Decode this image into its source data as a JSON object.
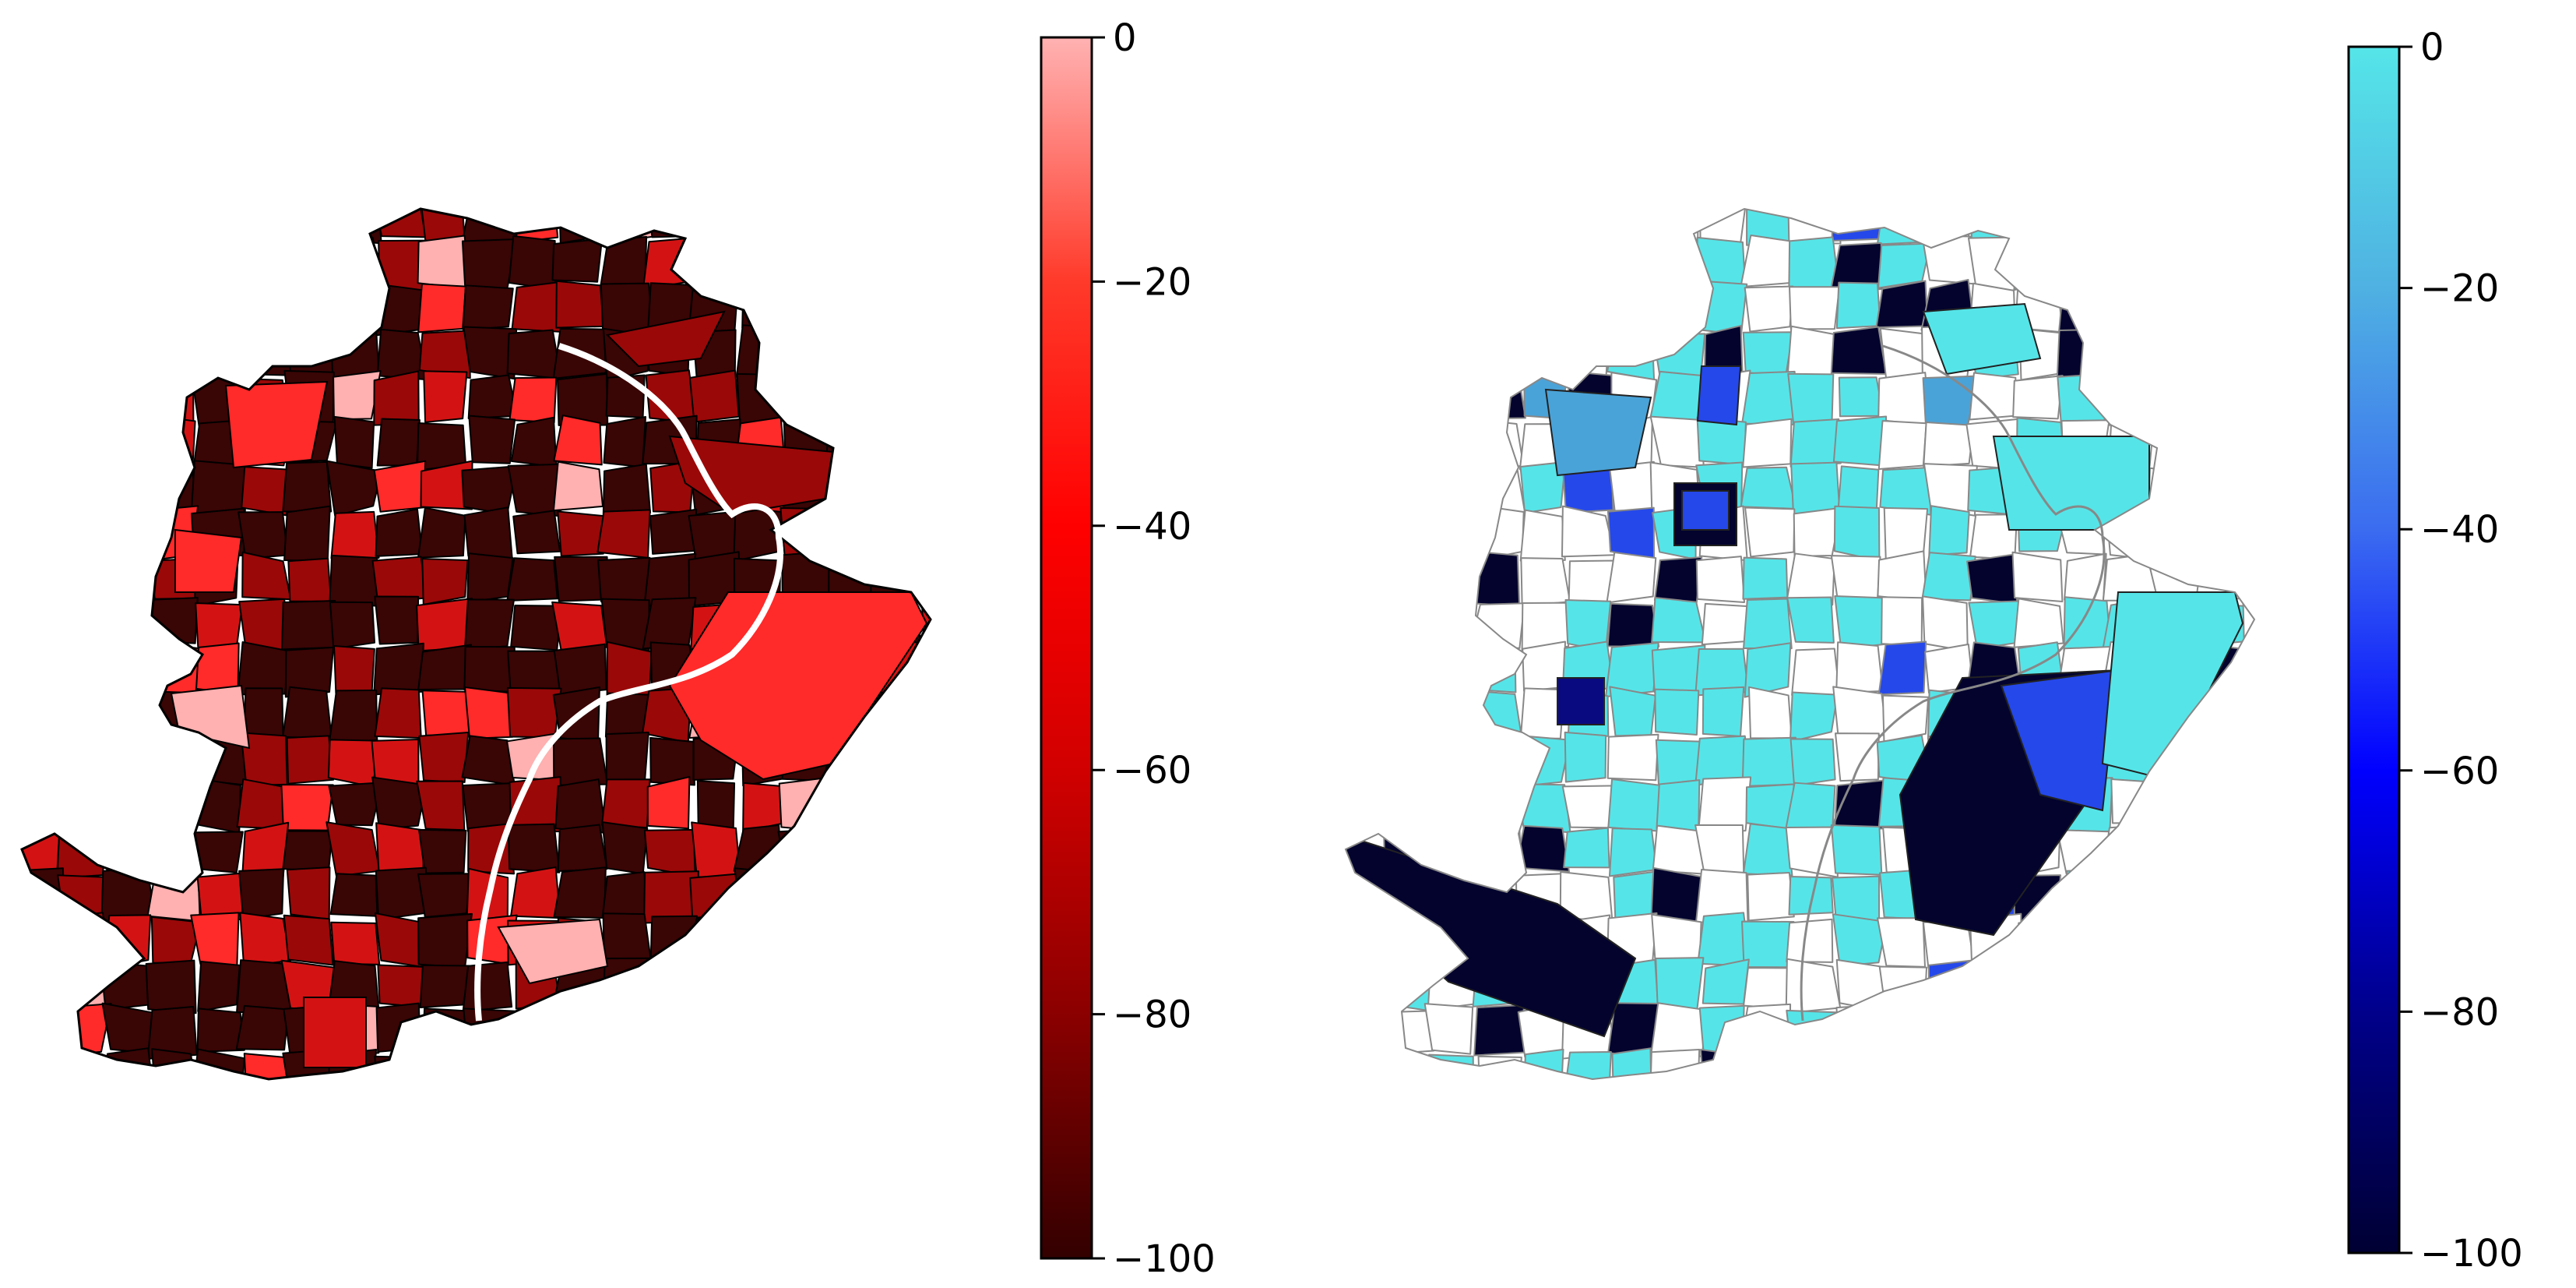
{
  "panels": [
    {
      "id": "left",
      "colorbar": {
        "ticks": [
          "0",
          "−20",
          "−40",
          "−60",
          "−80",
          "−100"
        ],
        "range": [
          -100,
          0
        ],
        "stops": [
          "#330000",
          "#8b0000",
          "#d10000",
          "#ff0000",
          "#ff3a2a",
          "#ffb2b2"
        ]
      },
      "outline_color": "#000000",
      "unfilled_color": "#ffffff",
      "levels": [
        {
          "value": -100,
          "color": "#3a0505"
        },
        {
          "value": -80,
          "color": "#9a0808"
        },
        {
          "value": -60,
          "color": "#d31313"
        },
        {
          "value": -40,
          "color": "#ff2a2a"
        },
        {
          "value": -15,
          "color": "#ff5a46"
        },
        {
          "value": 0,
          "color": "#ffb0b0"
        }
      ]
    },
    {
      "id": "right",
      "colorbar": {
        "ticks": [
          "0",
          "−20",
          "−40",
          "−60",
          "−80",
          "−100"
        ],
        "range": [
          -100,
          0
        ],
        "stops": [
          "#000033",
          "#00008b",
          "#0000ff",
          "#3b6cf0",
          "#4fb1e2",
          "#55e5e8"
        ]
      },
      "outline_color": "#888888",
      "unfilled_color": "#ffffff",
      "levels": [
        {
          "value": -100,
          "color": "#03032e"
        },
        {
          "value": -85,
          "color": "#0a0a80"
        },
        {
          "value": -45,
          "color": "#2548ea"
        },
        {
          "value": -25,
          "color": "#4aa3d8"
        },
        {
          "value": 0,
          "color": "#55e5e8"
        }
      ]
    }
  ]
}
